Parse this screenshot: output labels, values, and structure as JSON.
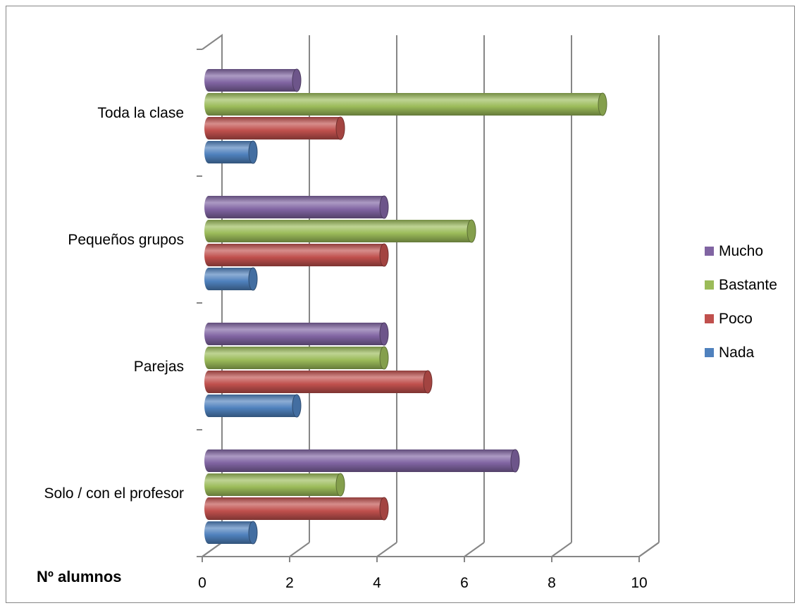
{
  "chart_data": {
    "type": "bar",
    "orientation": "horizontal",
    "style": "3d-cylinder",
    "categories": [
      "Toda la clase",
      "Pequeños grupos",
      "Parejas",
      "Solo / con el profesor"
    ],
    "series": [
      {
        "name": "Mucho",
        "values": [
          2,
          4,
          4,
          7
        ],
        "color": "#8064A2"
      },
      {
        "name": "Bastante",
        "values": [
          9,
          6,
          4,
          3
        ],
        "color": "#9BBB59"
      },
      {
        "name": "Poco",
        "values": [
          3,
          4,
          5,
          4
        ],
        "color": "#C0504D"
      },
      {
        "name": "Nada",
        "values": [
          1,
          1,
          2,
          1
        ],
        "color": "#4F81BD"
      }
    ],
    "xlabel": "Nº alumnos",
    "xlim": [
      0,
      10
    ],
    "x_ticks": [
      "0",
      "2",
      "4",
      "6",
      "8",
      "10"
    ],
    "grid": true,
    "legend_position": "right"
  }
}
